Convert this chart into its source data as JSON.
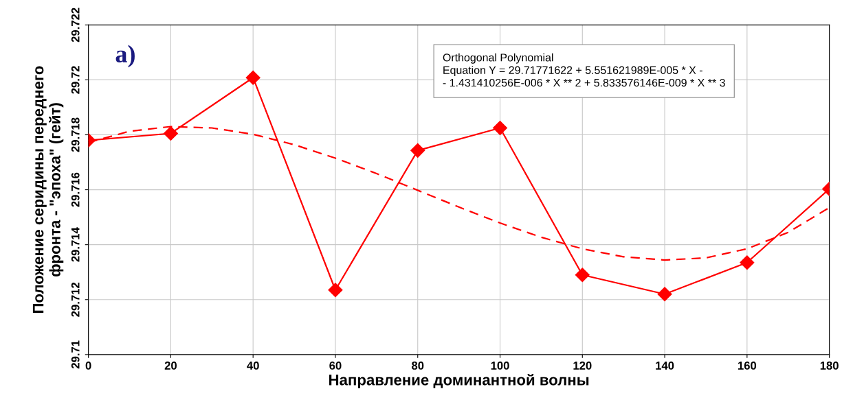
{
  "chart_data": {
    "type": "line",
    "xlabel": "Направление доминантной волны",
    "ylabel": "Положение серидины переднего\nфронта - \"эпоха\" (гейт)",
    "x": [
      0,
      20,
      40,
      60,
      80,
      100,
      120,
      140,
      160,
      180
    ],
    "series": [
      {
        "color": "#ff0000",
        "marker": "diamond",
        "line_style": "solid",
        "values": [
          29.7178,
          29.71805,
          29.72008,
          29.71235,
          29.71743,
          29.71825,
          29.7129,
          29.7122,
          29.71335,
          29.71603
        ]
      },
      {
        "color": "#ff0000",
        "marker": "none",
        "line_style": "dashed",
        "x": [
          0,
          10,
          20,
          30,
          40,
          50,
          60,
          70,
          80,
          90,
          100,
          110,
          120,
          130,
          140,
          150,
          160,
          170,
          180
        ],
        "values": [
          29.71772,
          29.71813,
          29.7183,
          29.71825,
          29.71802,
          29.71764,
          29.71715,
          29.71659,
          29.71598,
          29.71537,
          29.71479,
          29.71427,
          29.71385,
          29.71356,
          29.71344,
          29.71352,
          29.71385,
          29.71445,
          29.71535
        ]
      }
    ],
    "xlim": [
      0,
      180
    ],
    "xticks": [
      0,
      20,
      40,
      60,
      80,
      100,
      120,
      140,
      160,
      180
    ],
    "ylim": [
      29.71,
      29.722
    ],
    "yticks": [
      29.71,
      29.712,
      29.714,
      29.716,
      29.718,
      29.72,
      29.722
    ],
    "grid": true,
    "annotations": [
      "a)",
      "Orthogonal Polynomial\nEquation Y = 29.71771622 + 5.551621989E-005 * X -\n- 1.431410256E-006 * X ** 2 + 5.833576146E-009 * X ** 3"
    ]
  }
}
